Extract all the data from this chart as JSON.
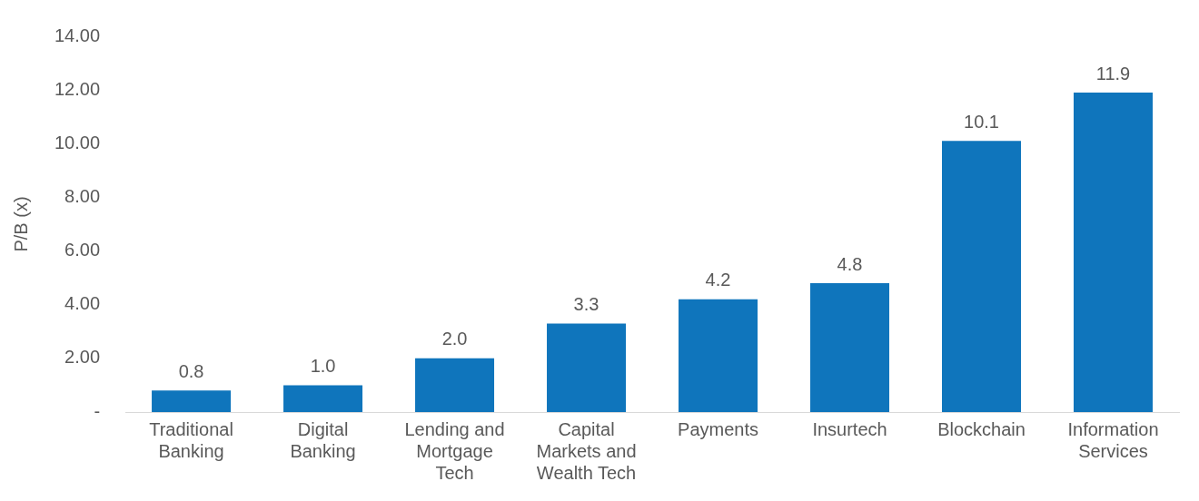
{
  "chart_data": {
    "type": "bar",
    "ylabel": "P/B (x)",
    "categories": [
      "Traditional Banking",
      "Digital Banking",
      "Lending and Mortgage Tech",
      "Capital Markets and Wealth Tech",
      "Payments",
      "Insurtech",
      "Blockchain",
      "Information Services"
    ],
    "values": [
      0.8,
      1.0,
      2.0,
      3.3,
      4.2,
      4.8,
      10.1,
      11.9
    ],
    "value_labels": [
      "0.8",
      "1.0",
      "2.0",
      "3.3",
      "4.2",
      "4.8",
      "10.1",
      "11.9"
    ],
    "color": "#0f75bc",
    "ylim": [
      0,
      14
    ],
    "yticks": [
      {
        "value": 0,
        "label": "-"
      },
      {
        "value": 2,
        "label": "2.00"
      },
      {
        "value": 4,
        "label": "4.00"
      },
      {
        "value": 6,
        "label": "6.00"
      },
      {
        "value": 8,
        "label": "8.00"
      },
      {
        "value": 10,
        "label": "10.00"
      },
      {
        "value": 12,
        "label": "12.00"
      },
      {
        "value": 14,
        "label": "14.00"
      }
    ],
    "grid": false,
    "legend": false
  }
}
